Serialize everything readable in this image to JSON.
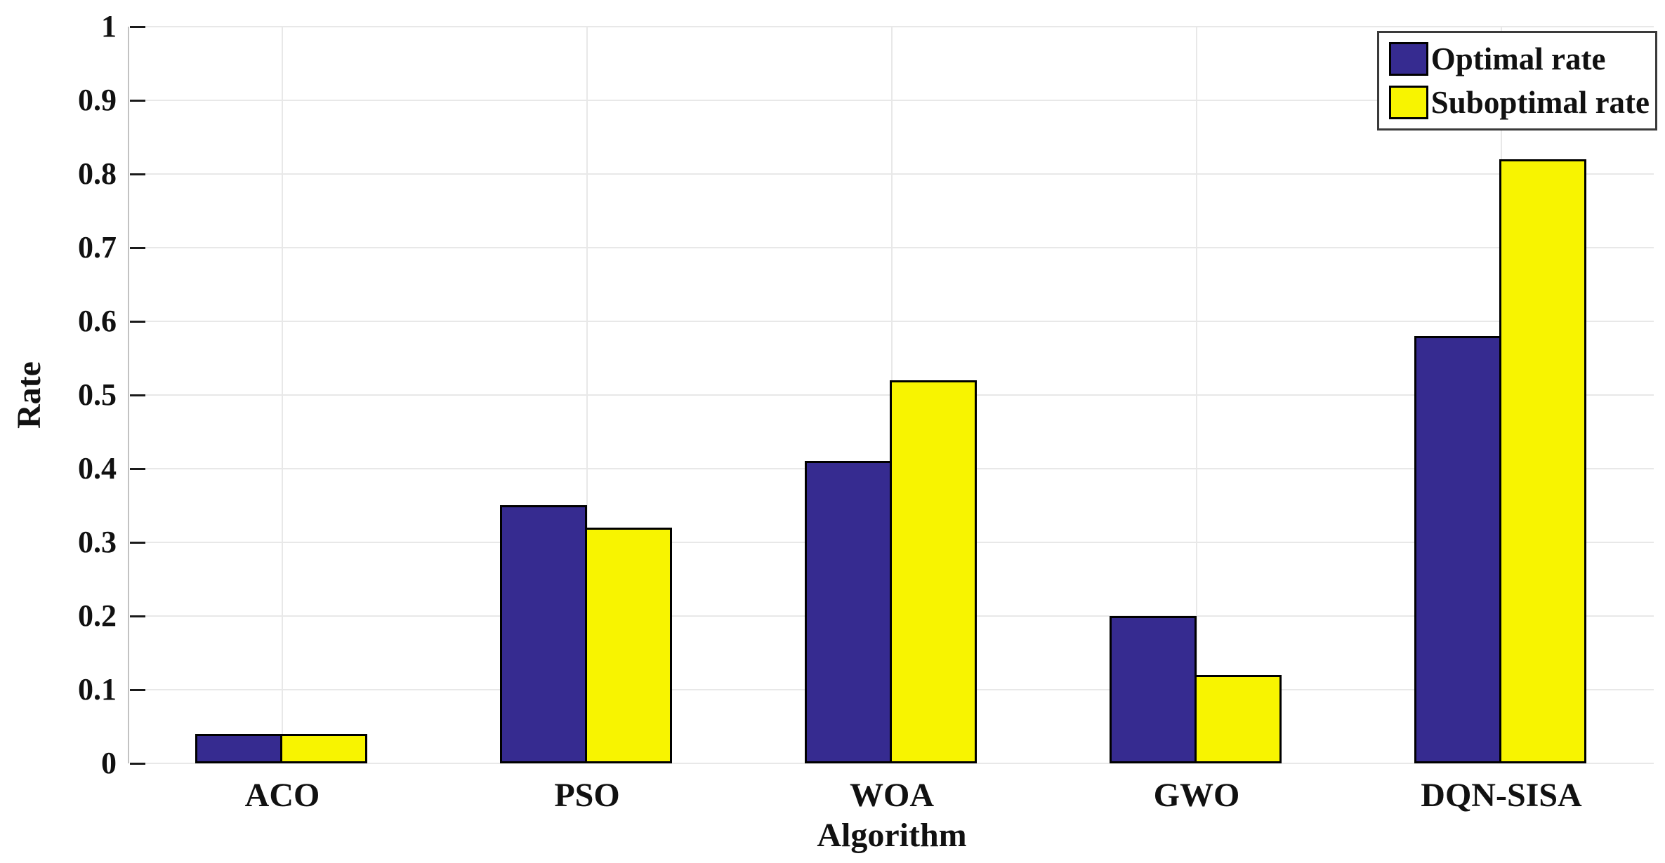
{
  "chart_data": {
    "type": "bar",
    "title": "",
    "xlabel": "Algorithm",
    "ylabel": "Rate",
    "categories": [
      "ACO",
      "PSO",
      "WOA",
      "GWO",
      "DQN-SISA"
    ],
    "series": [
      {
        "name": "Optimal rate",
        "color": "#362B90",
        "values": [
          0.04,
          0.35,
          0.41,
          0.2,
          0.58
        ]
      },
      {
        "name": "Suboptimal rate",
        "color": "#F8F400",
        "values": [
          0.04,
          0.32,
          0.52,
          0.12,
          0.82
        ]
      }
    ],
    "ylim": [
      0,
      1
    ],
    "ytick_step": 0.1,
    "ytick_labels": [
      "0",
      "0.1",
      "0.2",
      "0.3",
      "0.4",
      "0.5",
      "0.6",
      "0.7",
      "0.8",
      "0.9",
      "1"
    ],
    "grid": true,
    "vgrid_at_category_centers": true,
    "legend_position": "top-right",
    "styles": {
      "bar_edge_color": "#000000",
      "grid_color": "#e8e8e8",
      "axis_line_color": "#c2c2c2",
      "tick_color": "#1a1a1a",
      "legend_border_color": "#3a3a3a",
      "background": "#ffffff"
    }
  }
}
